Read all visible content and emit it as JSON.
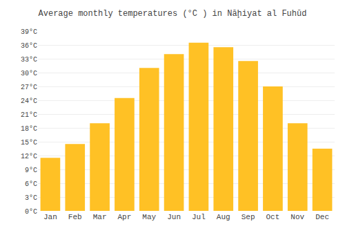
{
  "chart_data": {
    "type": "bar",
    "title": "Average monthly temperatures (°C ) in Nāḩiyat al Fuhūd",
    "categories": [
      "Jan",
      "Feb",
      "Mar",
      "Apr",
      "May",
      "Jun",
      "Jul",
      "Aug",
      "Sep",
      "Oct",
      "Nov",
      "Dec"
    ],
    "values": [
      11.5,
      14.5,
      19.0,
      24.5,
      31.0,
      34.0,
      36.5,
      35.5,
      32.5,
      27.0,
      19.0,
      13.5
    ],
    "color": "#FFC125",
    "ylim": [
      0,
      39
    ],
    "yticks": [
      {
        "value": 0,
        "label": "0°C"
      },
      {
        "value": 3,
        "label": "3°C"
      },
      {
        "value": 6,
        "label": "6°C"
      },
      {
        "value": 9,
        "label": "9°C"
      },
      {
        "value": 12,
        "label": "12°C"
      },
      {
        "value": 15,
        "label": "15°C"
      },
      {
        "value": 18,
        "label": "18°C"
      },
      {
        "value": 21,
        "label": "21°C"
      },
      {
        "value": 24,
        "label": "24°C"
      },
      {
        "value": 27,
        "label": "27°C"
      },
      {
        "value": 30,
        "label": "30°C"
      },
      {
        "value": 33,
        "label": "33°C"
      },
      {
        "value": 36,
        "label": "36°C"
      },
      {
        "value": 39,
        "label": "39°C"
      }
    ],
    "grid": true
  }
}
